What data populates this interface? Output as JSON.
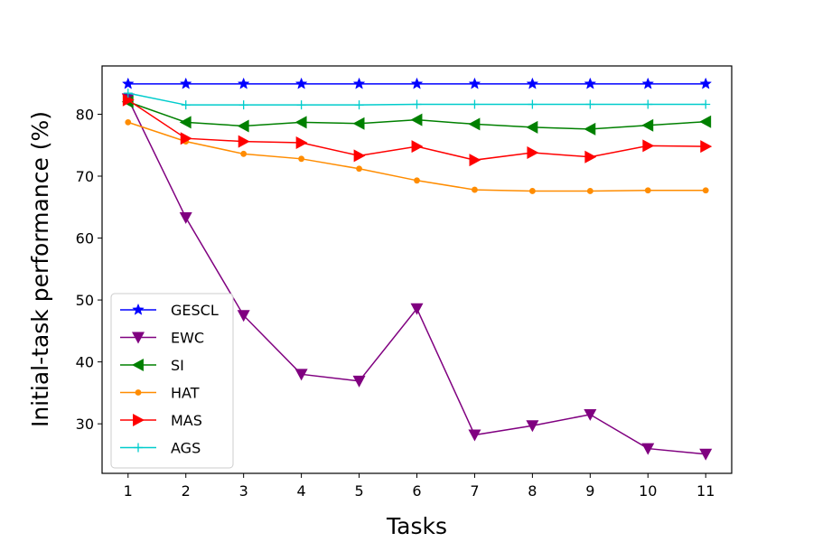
{
  "chart_data": {
    "type": "line",
    "title": "",
    "xlabel": "Tasks",
    "ylabel": "Initial-task performance (%)",
    "x": [
      1,
      2,
      3,
      4,
      5,
      6,
      7,
      8,
      9,
      10,
      11
    ],
    "xticks": [
      "1",
      "2",
      "3",
      "4",
      "5",
      "6",
      "7",
      "8",
      "9",
      "10",
      "11"
    ],
    "yticks": [
      30,
      40,
      50,
      60,
      70,
      80
    ],
    "xlim": [
      0.55,
      11.45
    ],
    "ylim": [
      22,
      87.8
    ],
    "grid": false,
    "legend_position": "lower-left",
    "series": [
      {
        "name": "GESCL",
        "color": "#0000ff",
        "marker": "star",
        "values": [
          84.9,
          84.9,
          84.9,
          84.9,
          84.9,
          84.9,
          84.9,
          84.9,
          84.9,
          84.9,
          84.9
        ]
      },
      {
        "name": "EWC",
        "color": "#800080",
        "marker": "triangle-down",
        "values": [
          82.5,
          63.3,
          47.5,
          38.0,
          36.9,
          48.6,
          28.2,
          29.7,
          31.5,
          26.0,
          25.1
        ]
      },
      {
        "name": "SI",
        "color": "#008000",
        "marker": "triangle-left",
        "values": [
          82.0,
          78.7,
          78.1,
          78.7,
          78.5,
          79.1,
          78.4,
          77.9,
          77.6,
          78.2,
          78.8
        ]
      },
      {
        "name": "HAT",
        "color": "#ff8c00",
        "marker": "circle",
        "values": [
          78.7,
          75.6,
          73.6,
          72.8,
          71.2,
          69.3,
          67.8,
          67.6,
          67.6,
          67.7,
          67.7
        ]
      },
      {
        "name": "MAS",
        "color": "#ff0000",
        "marker": "triangle-right",
        "values": [
          82.3,
          76.1,
          75.6,
          75.4,
          73.3,
          74.8,
          72.6,
          73.8,
          73.1,
          74.9,
          74.8
        ]
      },
      {
        "name": "AGS",
        "color": "#00cccc",
        "marker": "plus",
        "values": [
          83.4,
          81.5,
          81.5,
          81.5,
          81.5,
          81.6,
          81.6,
          81.6,
          81.6,
          81.6,
          81.6
        ]
      }
    ]
  }
}
